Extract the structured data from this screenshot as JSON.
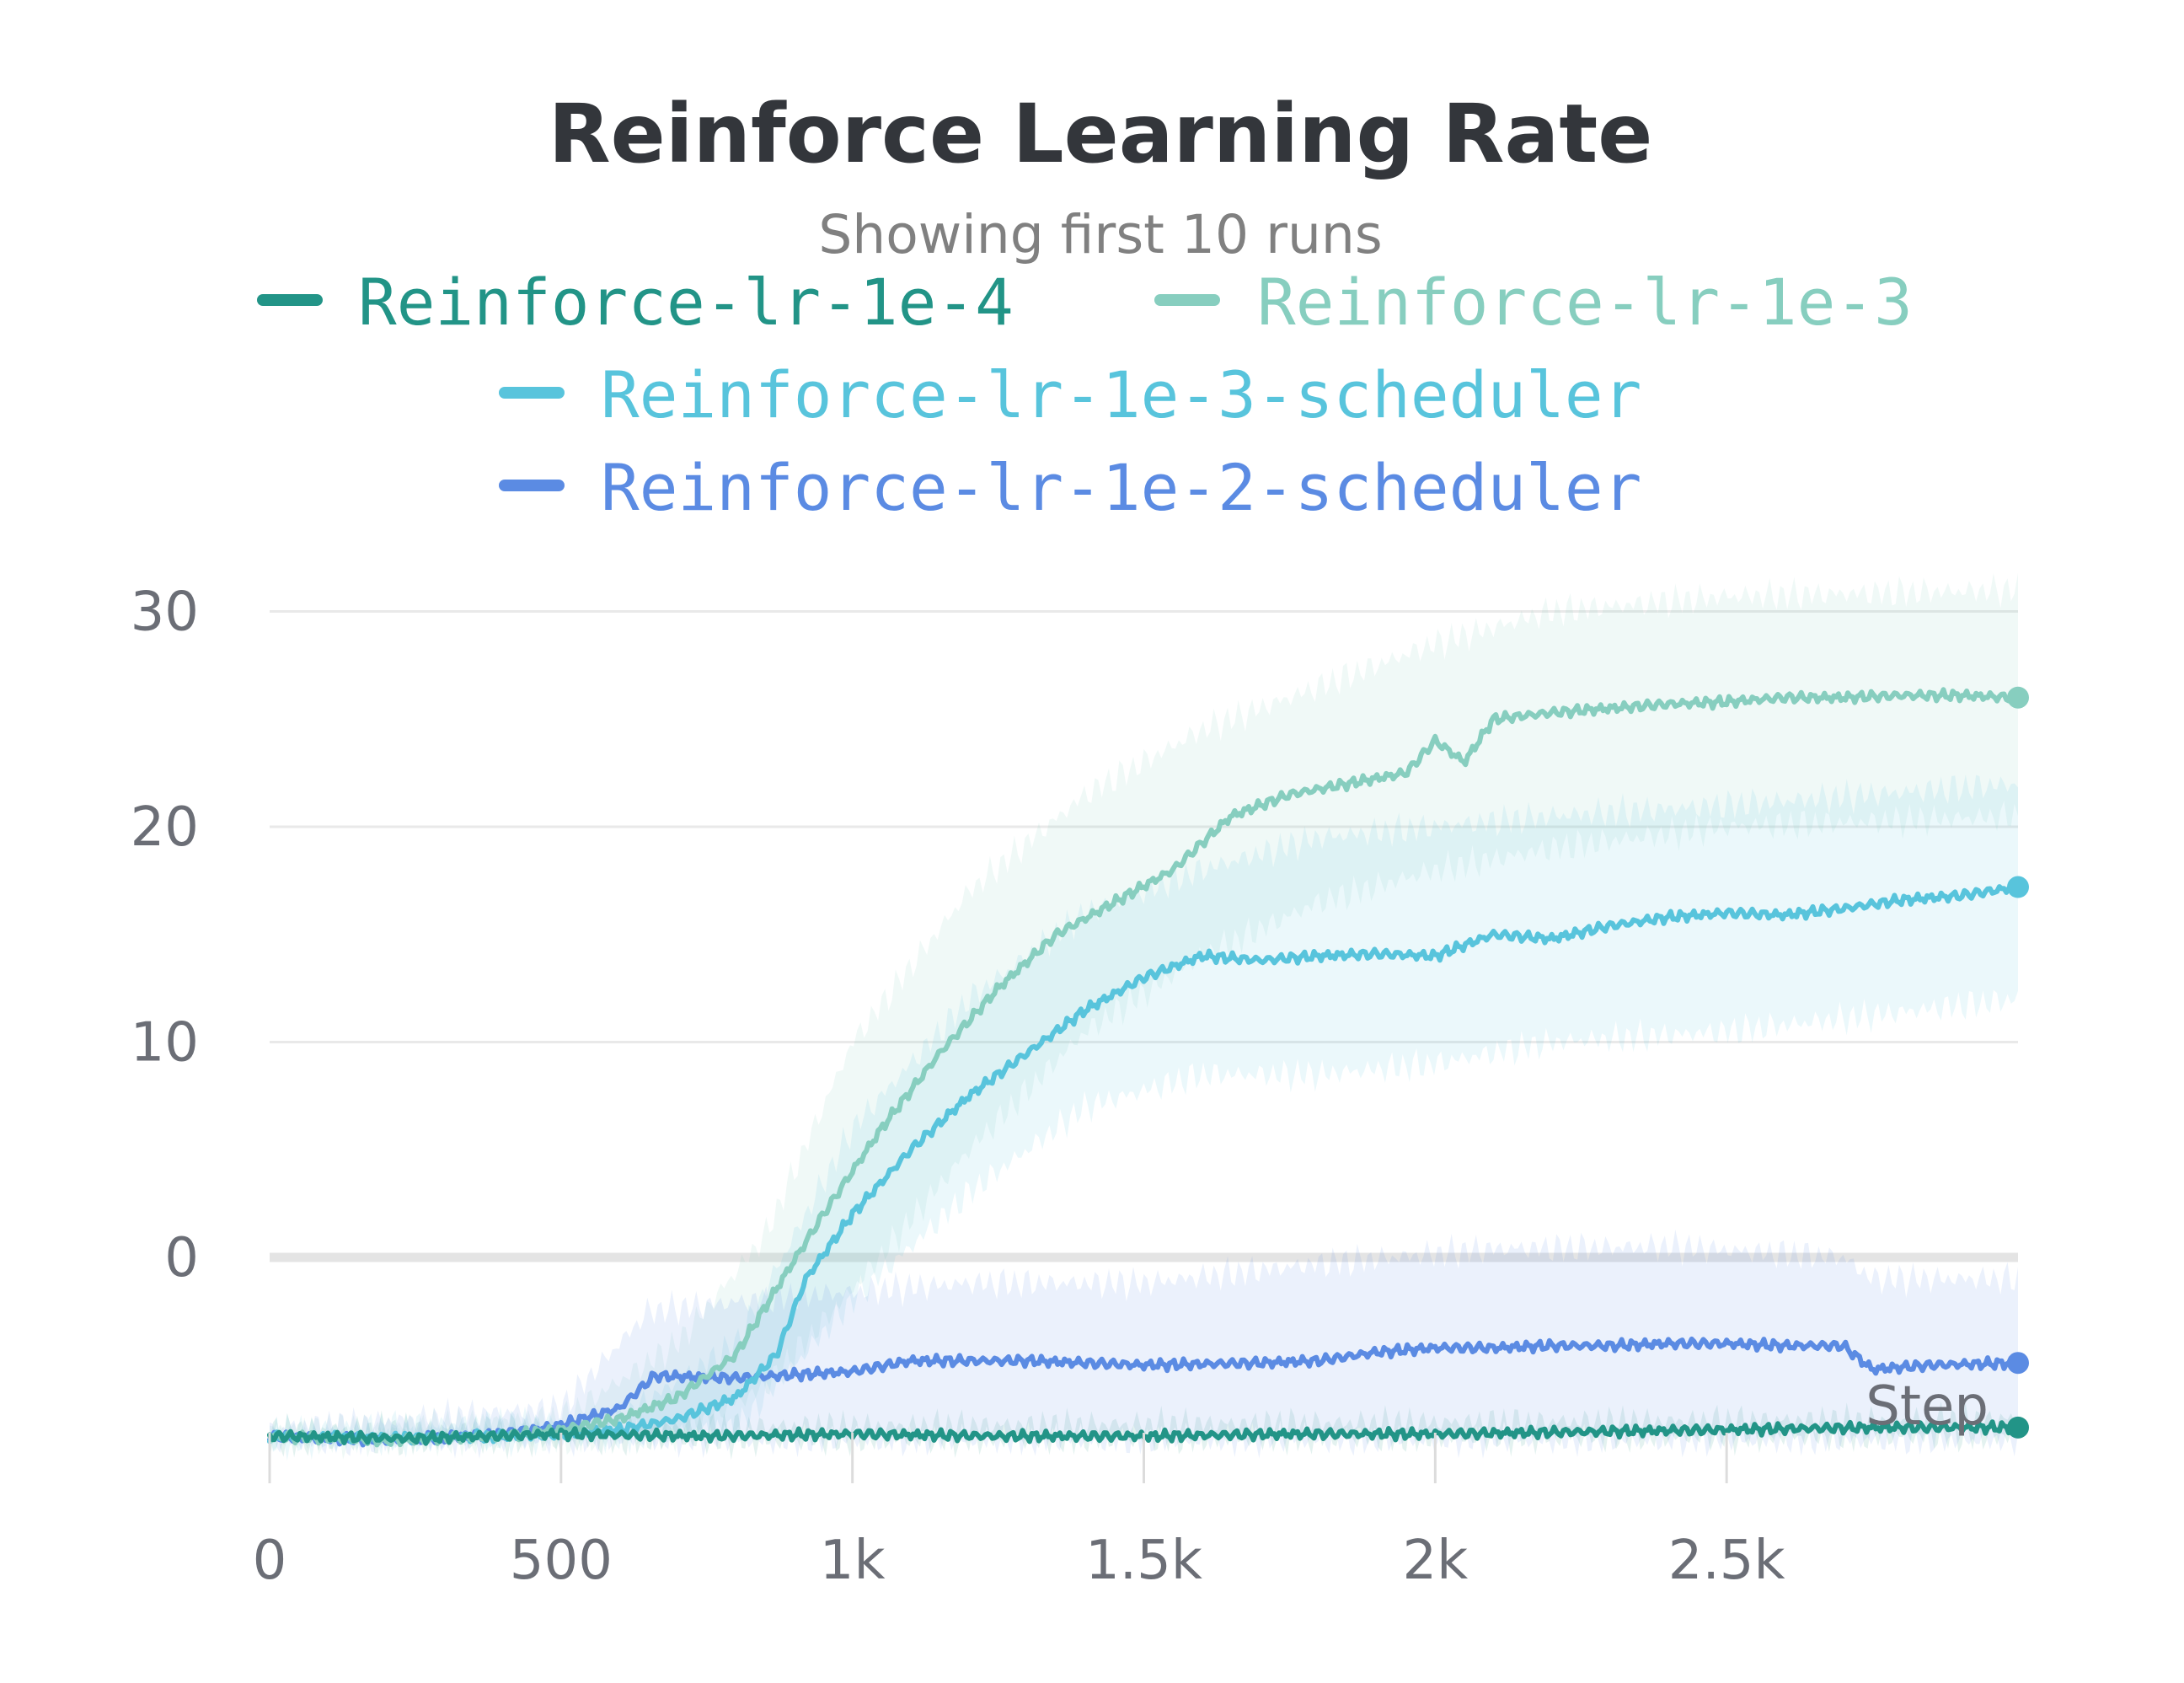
{
  "chart_data": {
    "type": "line",
    "title": "Reinforce Learning Rate",
    "subtitle": "Showing first 10 runs",
    "xlabel": "Step",
    "ylabel": "",
    "xlim": [
      0,
      3000
    ],
    "ylim": [
      -11,
      31
    ],
    "x_ticks": [
      0,
      500,
      1000,
      1500,
      2000,
      2500
    ],
    "x_tick_labels": [
      "0",
      "500",
      "1k",
      "1.5k",
      "2k",
      "2.5k"
    ],
    "y_ticks": [
      0,
      10,
      20,
      30
    ],
    "y_tick_labels": [
      "0",
      "10",
      "20",
      "30"
    ],
    "grid": true,
    "legend_position": "top",
    "series": [
      {
        "name": "Reinforce-lr-1e-4",
        "color": "#229487",
        "points": [
          [
            0,
            -8.3
          ],
          [
            250,
            -8.4
          ],
          [
            500,
            -8.2
          ],
          [
            750,
            -8.3
          ],
          [
            1000,
            -8.2
          ],
          [
            1250,
            -8.3
          ],
          [
            1500,
            -8.3
          ],
          [
            1750,
            -8.2
          ],
          [
            2000,
            -8.2
          ],
          [
            2250,
            -8.1
          ],
          [
            2500,
            -8.0
          ],
          [
            2750,
            -7.9
          ],
          [
            3000,
            -7.9
          ]
        ],
        "band_upper": [
          [
            0,
            -8.0
          ],
          [
            3000,
            -7.5
          ]
        ],
        "band_lower": [
          [
            0,
            -8.6
          ],
          [
            3000,
            -8.3
          ]
        ]
      },
      {
        "name": "Reinforce-lr-1e-3",
        "color": "#87cebf",
        "points": [
          [
            0,
            -8.3
          ],
          [
            200,
            -8.5
          ],
          [
            400,
            -8.3
          ],
          [
            500,
            -8.0
          ],
          [
            600,
            -7.5
          ],
          [
            700,
            -6.5
          ],
          [
            800,
            -4.5
          ],
          [
            880,
            -1.0
          ],
          [
            950,
            2.0
          ],
          [
            1050,
            6.0
          ],
          [
            1150,
            9.5
          ],
          [
            1250,
            12.5
          ],
          [
            1350,
            15.0
          ],
          [
            1450,
            16.5
          ],
          [
            1550,
            18.0
          ],
          [
            1650,
            20.5
          ],
          [
            1750,
            21.5
          ],
          [
            1850,
            22.0
          ],
          [
            1950,
            22.5
          ],
          [
            2000,
            24.0
          ],
          [
            2050,
            23.0
          ],
          [
            2100,
            25.0
          ],
          [
            2200,
            25.3
          ],
          [
            2300,
            25.5
          ],
          [
            2400,
            25.7
          ],
          [
            2500,
            25.8
          ],
          [
            2600,
            26.0
          ],
          [
            2700,
            26.0
          ],
          [
            2800,
            26.1
          ],
          [
            2900,
            26.1
          ],
          [
            3000,
            26.0
          ]
        ],
        "band_upper": [
          [
            0,
            -8.0
          ],
          [
            500,
            -7.5
          ],
          [
            700,
            -4.0
          ],
          [
            850,
            1.0
          ],
          [
            1000,
            10.0
          ],
          [
            1200,
            17.0
          ],
          [
            1400,
            21.5
          ],
          [
            1600,
            24.5
          ],
          [
            1800,
            26.5
          ],
          [
            2000,
            28.5
          ],
          [
            2200,
            30.0
          ],
          [
            2500,
            30.7
          ],
          [
            3000,
            31.0
          ]
        ],
        "band_lower": [
          [
            0,
            -8.6
          ],
          [
            500,
            -8.5
          ],
          [
            700,
            -8.3
          ],
          [
            850,
            -6.0
          ],
          [
            1000,
            -1.5
          ],
          [
            1200,
            5.0
          ],
          [
            1400,
            10.5
          ],
          [
            1600,
            14.0
          ],
          [
            1800,
            16.5
          ],
          [
            2000,
            18.0
          ],
          [
            2200,
            19.0
          ],
          [
            2500,
            20.0
          ],
          [
            3000,
            20.5
          ]
        ],
        "end_value": 26.0
      },
      {
        "name": "Reinforce-lr-1e-3-scheduler",
        "color": "#58c4dc",
        "points": [
          [
            0,
            -8.3
          ],
          [
            200,
            -8.4
          ],
          [
            400,
            -8.3
          ],
          [
            500,
            -8.2
          ],
          [
            600,
            -8.0
          ],
          [
            700,
            -7.5
          ],
          [
            800,
            -6.5
          ],
          [
            870,
            -4.5
          ],
          [
            920,
            -1.0
          ],
          [
            1000,
            2.0
          ],
          [
            1100,
            5.0
          ],
          [
            1200,
            7.5
          ],
          [
            1300,
            9.5
          ],
          [
            1400,
            11.5
          ],
          [
            1500,
            13.0
          ],
          [
            1600,
            14.0
          ],
          [
            1700,
            13.8
          ],
          [
            1800,
            14.0
          ],
          [
            1900,
            14.1
          ],
          [
            2000,
            14.0
          ],
          [
            2100,
            15.0
          ],
          [
            2200,
            14.8
          ],
          [
            2300,
            15.4
          ],
          [
            2400,
            15.8
          ],
          [
            2500,
            16.0
          ],
          [
            2600,
            15.9
          ],
          [
            2700,
            16.2
          ],
          [
            2800,
            16.6
          ],
          [
            2900,
            16.8
          ],
          [
            3000,
            17.2
          ]
        ],
        "band_upper": [
          [
            0,
            -8.0
          ],
          [
            600,
            -7.5
          ],
          [
            800,
            -4.0
          ],
          [
            1000,
            6.0
          ],
          [
            1200,
            12.0
          ],
          [
            1400,
            16.0
          ],
          [
            1600,
            18.0
          ],
          [
            1800,
            19.5
          ],
          [
            2000,
            20.0
          ],
          [
            2200,
            20.5
          ],
          [
            2500,
            21.0
          ],
          [
            3000,
            22.0
          ]
        ],
        "band_lower": [
          [
            0,
            -8.6
          ],
          [
            600,
            -8.4
          ],
          [
            800,
            -8.0
          ],
          [
            1000,
            -2.0
          ],
          [
            1200,
            3.0
          ],
          [
            1400,
            7.0
          ],
          [
            1600,
            8.5
          ],
          [
            1800,
            8.5
          ],
          [
            2000,
            9.0
          ],
          [
            2200,
            10.0
          ],
          [
            2500,
            10.5
          ],
          [
            3000,
            12.0
          ]
        ],
        "end_value": 17.2
      },
      {
        "name": "Reinforce-lr-1e-2-scheduler",
        "color": "#5b8be3",
        "points": [
          [
            0,
            -8.3
          ],
          [
            200,
            -8.5
          ],
          [
            400,
            -8.2
          ],
          [
            500,
            -7.8
          ],
          [
            600,
            -7.0
          ],
          [
            660,
            -5.5
          ],
          [
            800,
            -5.6
          ],
          [
            1000,
            -5.3
          ],
          [
            1100,
            -4.8
          ],
          [
            1200,
            -4.8
          ],
          [
            1300,
            -4.8
          ],
          [
            1500,
            -5.0
          ],
          [
            1700,
            -4.9
          ],
          [
            1800,
            -4.8
          ],
          [
            1900,
            -4.4
          ],
          [
            2000,
            -4.2
          ],
          [
            2100,
            -4.2
          ],
          [
            2200,
            -4.1
          ],
          [
            2300,
            -4.1
          ],
          [
            2400,
            -4.0
          ],
          [
            2500,
            -4.0
          ],
          [
            2600,
            -4.1
          ],
          [
            2700,
            -4.1
          ],
          [
            2750,
            -5.2
          ],
          [
            2850,
            -5.0
          ],
          [
            3000,
            -4.9
          ]
        ],
        "band_upper": [
          [
            0,
            -8.0
          ],
          [
            500,
            -7.0
          ],
          [
            650,
            -2.5
          ],
          [
            900,
            -1.8
          ],
          [
            1200,
            -1.2
          ],
          [
            1500,
            -1.2
          ],
          [
            1800,
            -0.3
          ],
          [
            2100,
            0.4
          ],
          [
            2400,
            0.5
          ],
          [
            2700,
            0.0
          ],
          [
            2750,
            -1.0
          ],
          [
            3000,
            -1.0
          ]
        ],
        "band_lower": [
          [
            0,
            -8.6
          ],
          [
            500,
            -8.5
          ],
          [
            650,
            -8.5
          ],
          [
            1000,
            -8.5
          ],
          [
            1500,
            -8.5
          ],
          [
            2000,
            -8.5
          ],
          [
            2500,
            -8.5
          ],
          [
            3000,
            -8.5
          ]
        ],
        "end_value": -4.9
      }
    ]
  }
}
